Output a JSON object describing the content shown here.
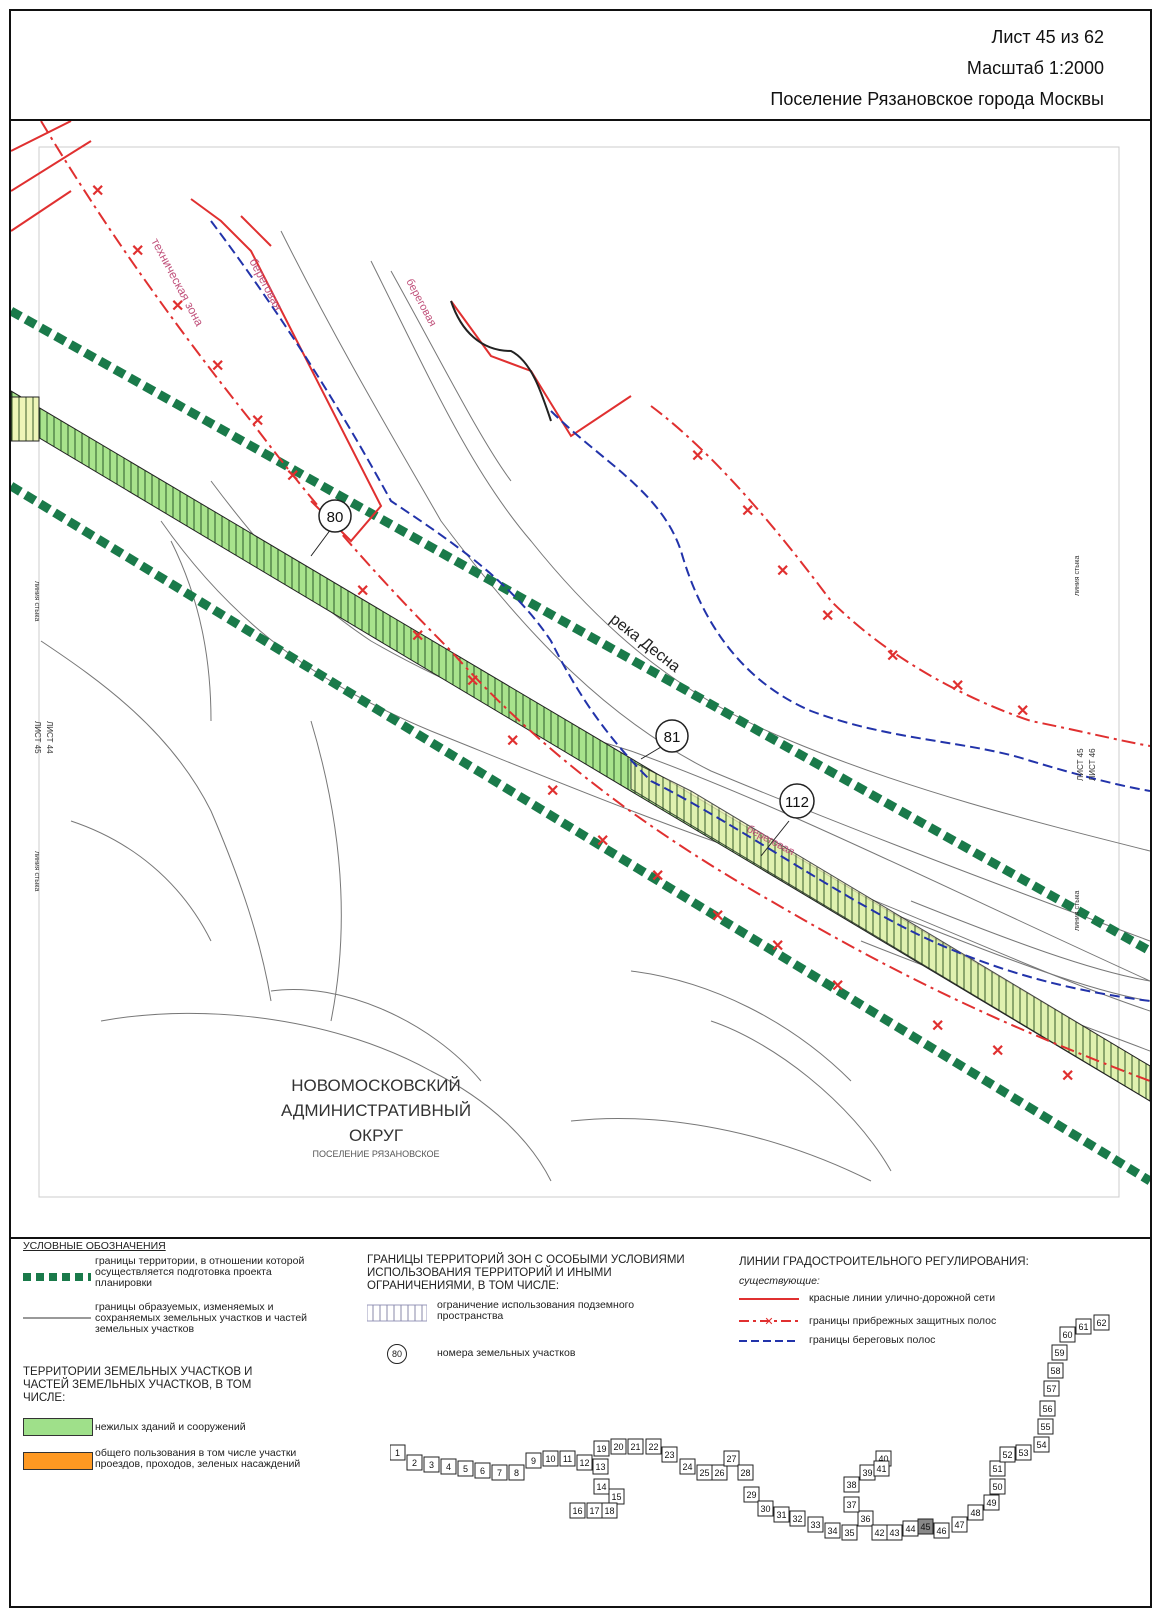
{
  "header": {
    "sheet": "Лист 45 из 62",
    "scale": "Масштаб 1:2000",
    "settlement": "Поселение Рязановское города Москвы"
  },
  "map": {
    "river_label": "река Десна",
    "parcels": [
      "80",
      "81",
      "112"
    ],
    "district": [
      "НОВОМОСКОВСКИЙ",
      "АДМИНИСТРАТИВНЫЙ",
      "ОКРУГ"
    ],
    "district_sub": "ПОСЕЛЕНИЕ РЯЗАНОВСКОЕ",
    "zone_labels": [
      "береговая",
      "техническая зона",
      "береговая",
      "береговая"
    ],
    "left_edge": {
      "join_top": "линия стыка",
      "sheet_a": "ЛИСТ 45",
      "sheet_b": "ЛИСТ 44",
      "join_bottom": "линия стыка"
    },
    "right_edge": {
      "join_top": "линия стыка",
      "sheet_a": "ЛИСТ 45",
      "sheet_b": "ЛИСТ 46",
      "join_bottom": "линия стыка"
    }
  },
  "legend": {
    "title": "УСЛОВНЫЕ ОБОЗНАЧЕНИЯ",
    "planning_boundary": "границы территории, в отношении которой осуществляется подготовка проекта планировки",
    "parcel_boundary": "границы образуемых, изменяемых и сохраняемых земельных участков и частей земельных участков",
    "territories_head": "ТЕРРИТОРИИ ЗЕМЕЛЬНЫХ УЧАСТКОВ И ЧАСТЕЙ ЗЕМЕЛЬНЫХ УЧАСТКОВ, В ТОМ ЧИСЛЕ:",
    "non_residential": "нежилых зданий и сооружений",
    "public_use": "общего пользования в том числе участки проездов, проходов, зеленых насаждений",
    "zones_head": "ГРАНИЦЫ ТЕРРИТОРИЙ ЗОН С ОСОБЫМИ УСЛОВИЯМИ ИСПОЛЬЗОВАНИЯ ТЕРРИТОРИЙ И ИНЫМИ ОГРАНИЧЕНИЯМИ, В ТОМ ЧИСЛЕ:",
    "underground": "ограничение использования подземного пространства",
    "parcel_numbers": "номера земельных участков",
    "parcel_numbers_sample": "80",
    "regulation_head": "ЛИНИИ ГРАДОСТРОИТЕЛЬНОГО РЕГУЛИРОВАНИЯ:",
    "existing": "существующие:",
    "red_lines": "красные линии улично-дорожной сети",
    "coastal_protect": "границы прибрежных защитных полос",
    "coastal_strips": "границы береговых полос"
  },
  "colors": {
    "green_dash": "#1a7a4a",
    "parcel_green": "#9fe08a",
    "red": "#e03030",
    "blue": "#2233aa",
    "orange": "#ff9922"
  },
  "index_sheets": [
    "1",
    "2",
    "3",
    "4",
    "5",
    "6",
    "7",
    "8",
    "9",
    "10",
    "11",
    "12",
    "13",
    "14",
    "15",
    "16",
    "17",
    "18",
    "19",
    "20",
    "21",
    "22",
    "23",
    "24",
    "25",
    "26",
    "27",
    "28",
    "29",
    "30",
    "31",
    "32",
    "33",
    "34",
    "35",
    "36",
    "37",
    "38",
    "39",
    "40",
    "41",
    "42",
    "43",
    "44",
    "45",
    "46",
    "47",
    "48",
    "49",
    "50",
    "51",
    "52",
    "53",
    "54",
    "55",
    "56",
    "57",
    "58",
    "59",
    "60",
    "61",
    "62"
  ]
}
